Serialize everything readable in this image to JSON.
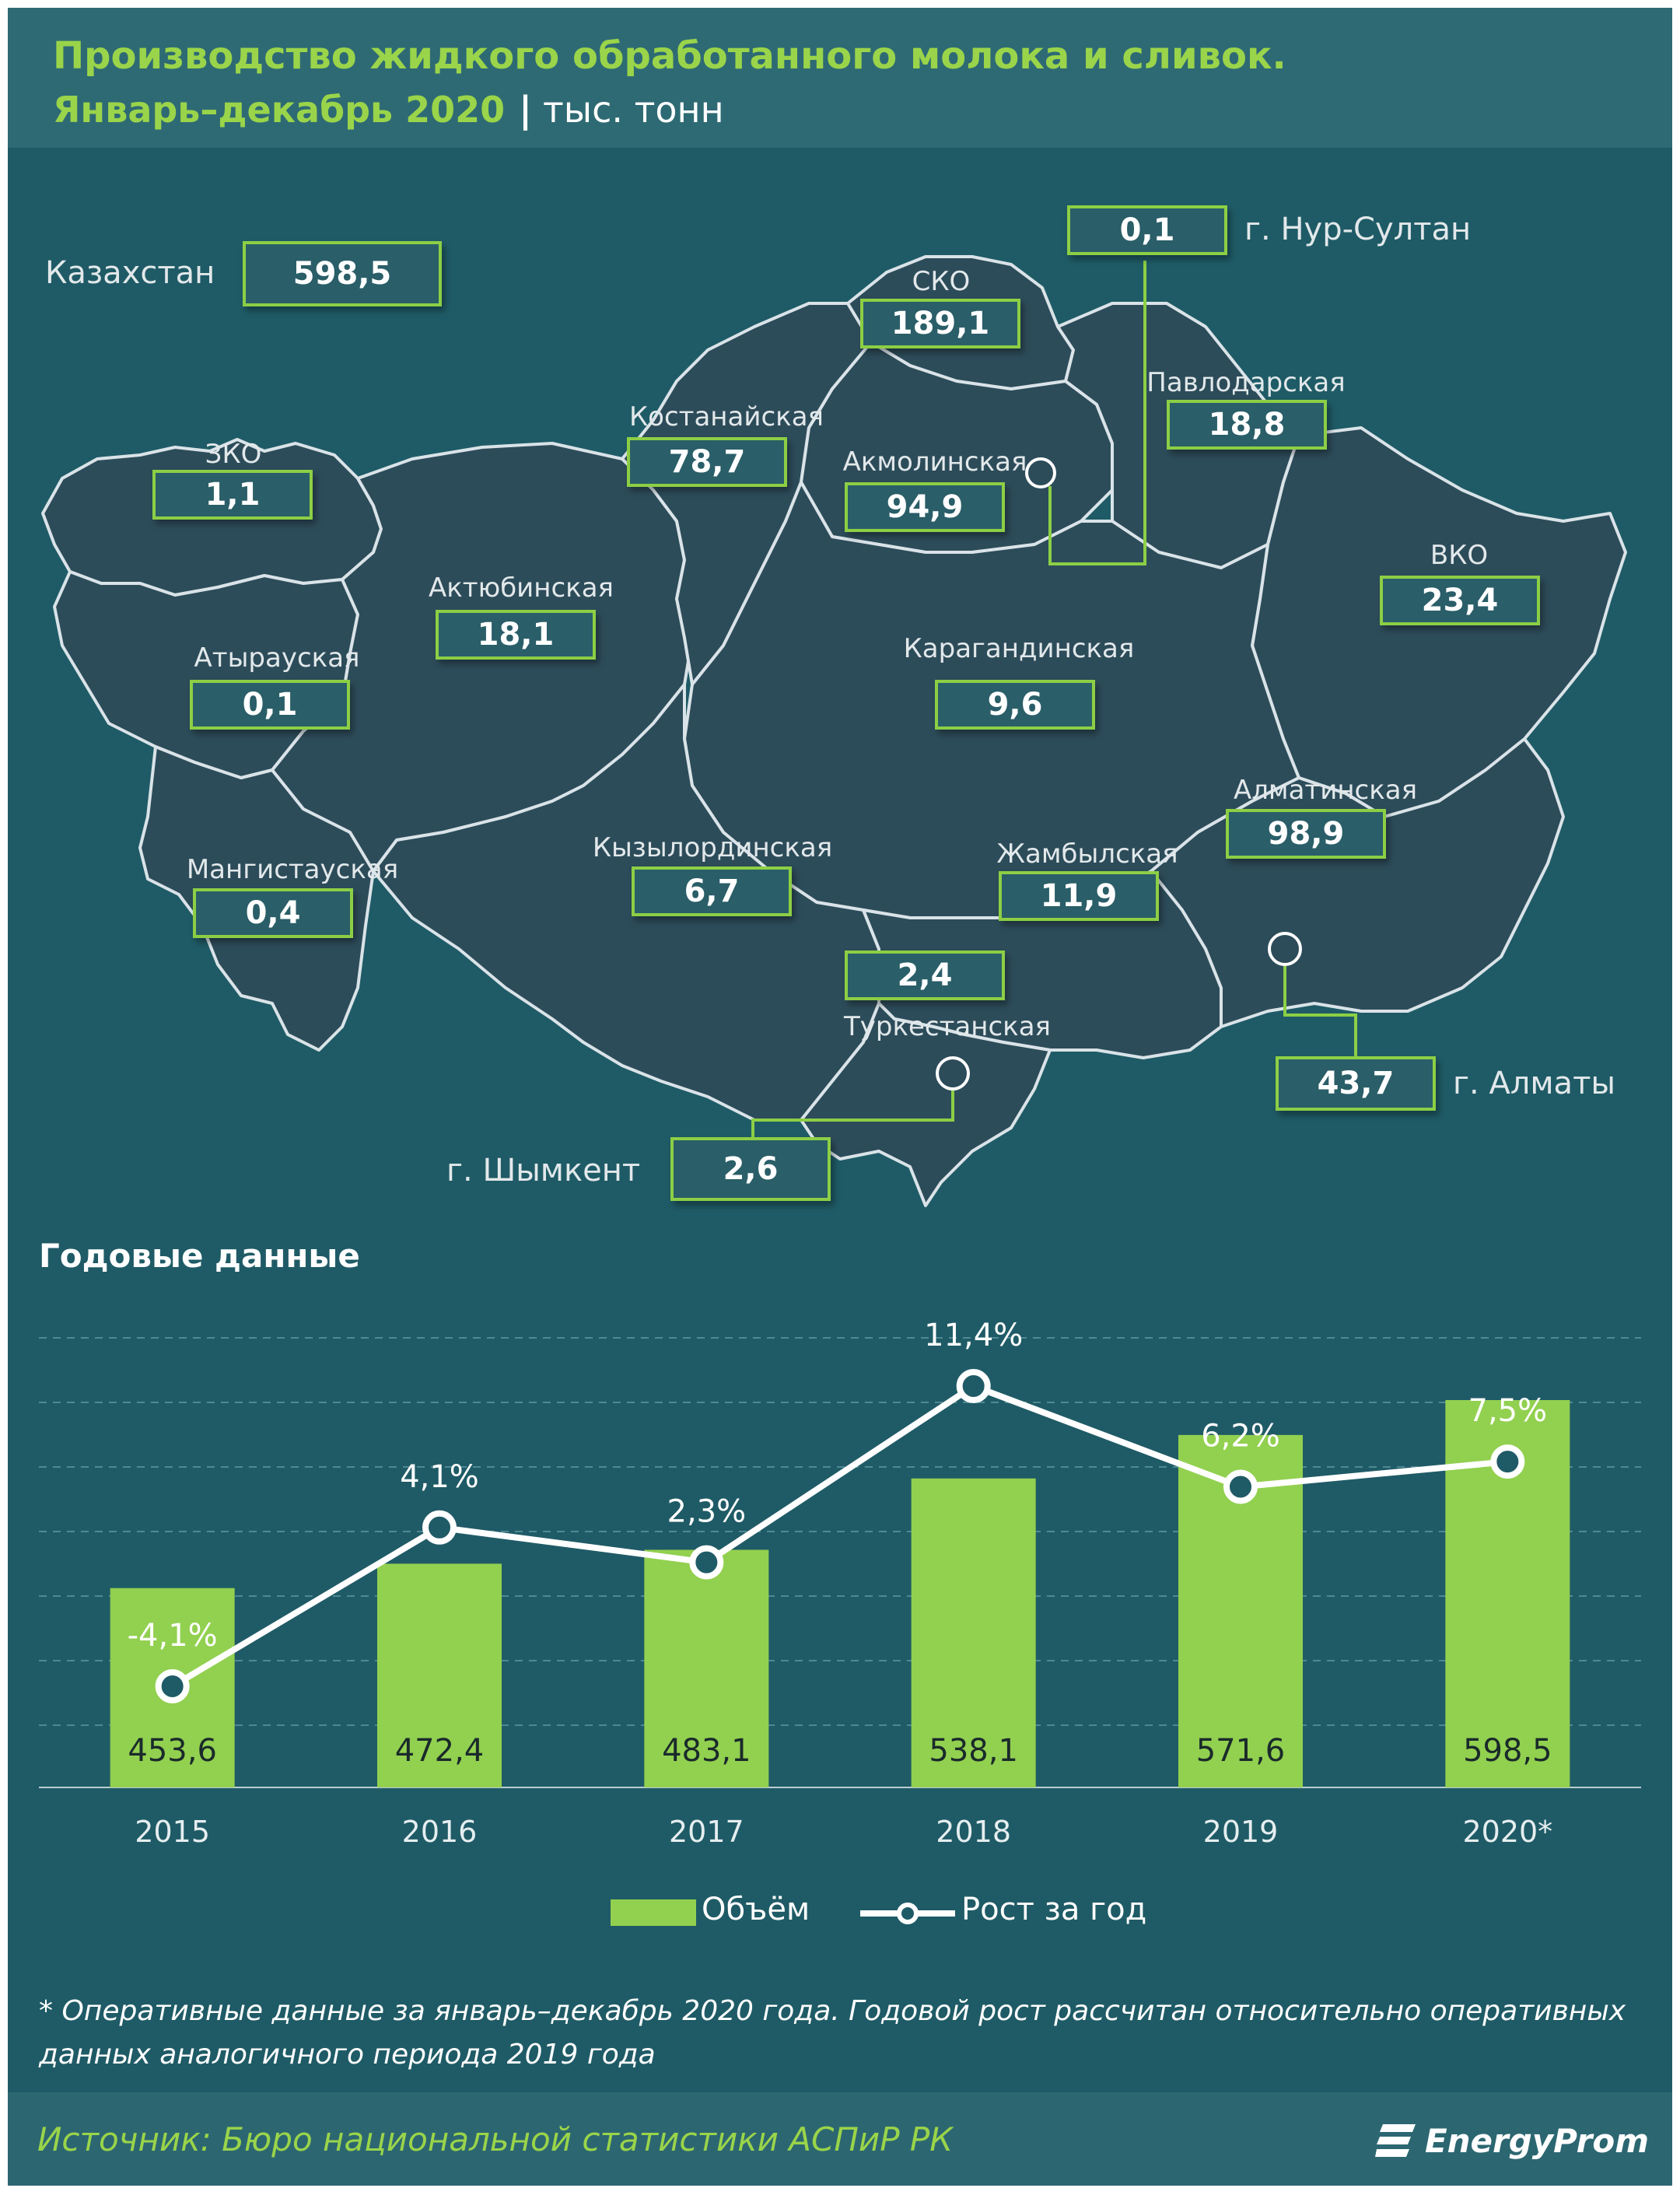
{
  "header": {
    "title_line1": "Производство жидкого обработанного молока и сливок.",
    "title_line2": "Январь–декабрь 2020",
    "separator": "|",
    "unit": "тыс. тонн"
  },
  "map": {
    "country_label": "Казахстан",
    "country_value": "598,5",
    "regions": [
      {
        "name": "СКО",
        "value": "189,1"
      },
      {
        "name": "Павлодарская",
        "value": "18,8"
      },
      {
        "name": "ЗКО",
        "value": "1,1"
      },
      {
        "name": "Костанайская",
        "value": "78,7"
      },
      {
        "name": "Акмолинская",
        "value": "94,9"
      },
      {
        "name": "Актюбинская",
        "value": "18,1"
      },
      {
        "name": "ВКО",
        "value": "23,4"
      },
      {
        "name": "Атырауская",
        "value": "0,1"
      },
      {
        "name": "Карагандинская",
        "value": "9,6"
      },
      {
        "name": "Алматинская",
        "value": "98,9"
      },
      {
        "name": "Мангистауская",
        "value": "0,4"
      },
      {
        "name": "Кызылординская",
        "value": "6,7"
      },
      {
        "name": "Жамбылская",
        "value": "11,9"
      },
      {
        "name": "Туркестанская",
        "value": "2,4"
      }
    ],
    "cities": [
      {
        "name": "г. Нур-Султан",
        "value": "0,1"
      },
      {
        "name": "г. Алматы",
        "value": "43,7"
      },
      {
        "name": "г. Шымкент",
        "value": "2,6"
      }
    ]
  },
  "annual": {
    "title": "Годовые данные"
  },
  "chart_data": {
    "type": "bar",
    "categories": [
      "2015",
      "2016",
      "2017",
      "2018",
      "2019",
      "2020*"
    ],
    "series": [
      {
        "name": "Объём",
        "type": "bar",
        "values": [
          453.6,
          472.4,
          483.1,
          538.1,
          571.6,
          598.5
        ],
        "labels": [
          "453,6",
          "472,4",
          "483,1",
          "538,1",
          "571,6",
          "598,5"
        ]
      },
      {
        "name": "Рост за год",
        "type": "line",
        "values": [
          -4.1,
          4.1,
          2.3,
          11.4,
          6.2,
          7.5
        ],
        "labels": [
          "-4,1%",
          "4,1%",
          "2,3%",
          "11,4%",
          "6,2%",
          "7,5%"
        ]
      }
    ],
    "legend": "bottom-center",
    "grid": true
  },
  "legend": {
    "bar_label": "Объём",
    "line_label": "Рост за год"
  },
  "footnote": "* Оперативные данные за январь–декабрь 2020 года. Годовой рост рассчитан относительно оперативных данных аналогичного периода 2019 года",
  "source": "Источник: Бюро национальной  статистики АСПиР РК",
  "logo": {
    "text": "EnergyProm"
  },
  "colors": {
    "background": "#1f5b66",
    "accent_green": "#92d050",
    "title_green": "#9ad44a",
    "region_fill": "#2d4c5a"
  }
}
